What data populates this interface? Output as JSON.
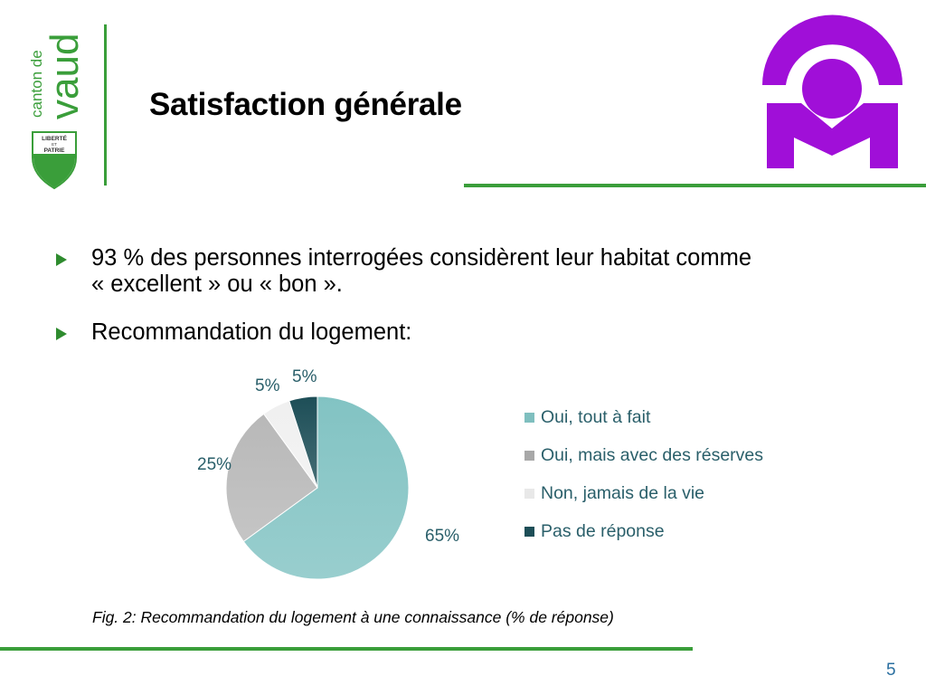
{
  "logo": {
    "wordmark_small": "canton de",
    "wordmark_large": "vaud",
    "shield_line1": "LIBERTÉ",
    "shield_line2": "ET",
    "shield_line3": "PATRIE",
    "green": "#3a9e3a",
    "mark_color": "#a00fd8"
  },
  "title": "Satisfaction générale",
  "bullets": [
    {
      "line1": "93 % des personnes interrogées considèrent leur habitat comme",
      "line2": "« excellent » ou « bon »."
    },
    {
      "line1": "Recommandation du logement:"
    }
  ],
  "chart_data": {
    "type": "pie",
    "start": "top, clockwise",
    "legend_position": "right",
    "slices": [
      {
        "label": "Oui, tout à fait",
        "value": 65,
        "value_label": "65%",
        "color": "#82c3c3",
        "legend_swatch": "#7fbfbf"
      },
      {
        "label": "Oui, mais avec des réserves",
        "value": 25,
        "value_label": "25%",
        "color": "#b8b8b8",
        "legend_swatch": "#a8a8a8"
      },
      {
        "label": "Non, jamais de la vie",
        "value": 5,
        "value_label": "5%",
        "color": "#f0f0f0",
        "legend_swatch": "#e8e8e8"
      },
      {
        "label": "Pas de réponse",
        "value": 5,
        "value_label": "5%",
        "color": "#1d4e57",
        "legend_swatch": "#1d4e57"
      }
    ]
  },
  "caption": "Fig. 2: Recommandation du logement à une connaissance (% de réponse)",
  "page_number": "5"
}
